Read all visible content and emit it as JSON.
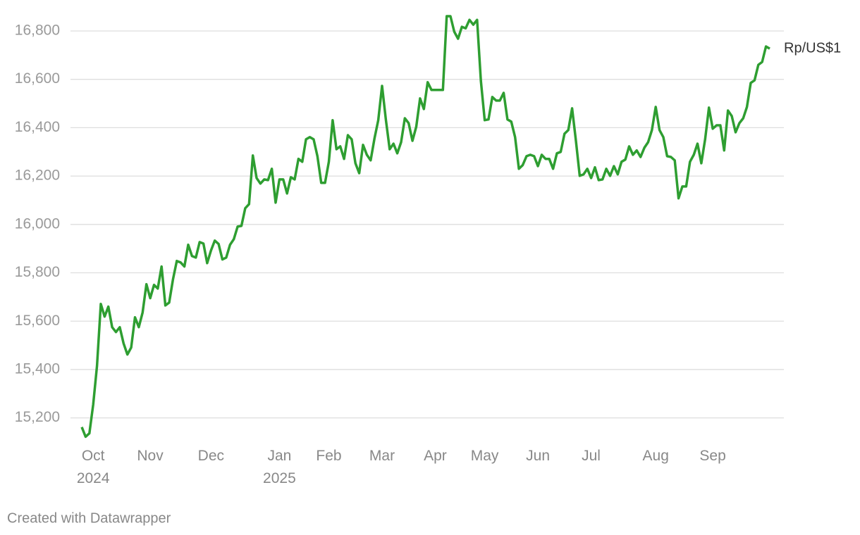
{
  "chart_data": {
    "type": "line",
    "credit": "Created with Datawrapper",
    "categories": [
      null,
      null,
      null,
      "Oct 2024",
      null,
      null,
      null,
      null,
      null,
      null,
      null,
      null,
      null,
      null,
      null,
      null,
      null,
      null,
      "Nov",
      null,
      null,
      null,
      null,
      null,
      null,
      null,
      null,
      null,
      null,
      null,
      null,
      null,
      null,
      null,
      "Dec",
      null,
      null,
      null,
      null,
      null,
      null,
      null,
      null,
      null,
      null,
      null,
      null,
      null,
      null,
      null,
      null,
      null,
      "Jan 2025",
      null,
      null,
      null,
      null,
      null,
      null,
      null,
      null,
      null,
      null,
      null,
      null,
      "Feb",
      null,
      null,
      null,
      null,
      null,
      null,
      null,
      null,
      null,
      null,
      null,
      null,
      null,
      "Mar",
      null,
      null,
      null,
      null,
      null,
      null,
      null,
      null,
      null,
      null,
      null,
      null,
      null,
      "Apr",
      null,
      null,
      null,
      null,
      null,
      null,
      null,
      null,
      null,
      null,
      null,
      null,
      "May",
      null,
      null,
      null,
      null,
      null,
      null,
      null,
      null,
      null,
      null,
      null,
      null,
      null,
      "Jun",
      null,
      null,
      null,
      null,
      null,
      null,
      null,
      null,
      null,
      null,
      null,
      null,
      null,
      "Jul",
      null,
      null,
      null,
      null,
      null,
      null,
      null,
      null,
      null,
      null,
      null,
      null,
      null,
      null,
      null,
      null,
      "Aug",
      null,
      null,
      null,
      null,
      null,
      null,
      null,
      null,
      null,
      null,
      null,
      null,
      null,
      null,
      "Sep",
      null,
      null,
      null,
      null,
      null,
      null,
      null,
      null,
      null,
      null,
      null,
      null,
      null,
      null,
      null
    ],
    "series": [
      {
        "name": "Rp/US$1",
        "color": "#2e9e31",
        "values": [
          15162,
          15122,
          15136,
          15255,
          15415,
          15671,
          15619,
          15660,
          15575,
          15555,
          15575,
          15508,
          15462,
          15491,
          15616,
          15575,
          15636,
          15753,
          15695,
          15750,
          15735,
          15826,
          15665,
          15677,
          15773,
          15849,
          15843,
          15826,
          15916,
          15869,
          15863,
          15927,
          15921,
          15840,
          15892,
          15933,
          15919,
          15855,
          15863,
          15916,
          15939,
          15991,
          15994,
          16067,
          16084,
          16285,
          16192,
          16169,
          16186,
          16183,
          16230,
          16090,
          16186,
          16186,
          16128,
          16195,
          16186,
          16271,
          16259,
          16352,
          16361,
          16352,
          16282,
          16172,
          16172,
          16259,
          16431,
          16311,
          16323,
          16271,
          16369,
          16352,
          16253,
          16212,
          16329,
          16288,
          16265,
          16355,
          16431,
          16573,
          16433,
          16311,
          16334,
          16294,
          16340,
          16439,
          16419,
          16346,
          16404,
          16521,
          16477,
          16588,
          16556,
          16556,
          16556,
          16556,
          16861,
          16861,
          16797,
          16768,
          16817,
          16811,
          16846,
          16826,
          16846,
          16593,
          16431,
          16434,
          16527,
          16512,
          16512,
          16544,
          16434,
          16425,
          16361,
          16230,
          16245,
          16282,
          16288,
          16282,
          16241,
          16288,
          16271,
          16271,
          16230,
          16294,
          16300,
          16375,
          16390,
          16480,
          16346,
          16201,
          16207,
          16230,
          16192,
          16236,
          16183,
          16186,
          16230,
          16201,
          16241,
          16207,
          16259,
          16268,
          16323,
          16288,
          16306,
          16279,
          16317,
          16340,
          16390,
          16486,
          16390,
          16361,
          16282,
          16279,
          16265,
          16108,
          16157,
          16157,
          16259,
          16288,
          16334,
          16253,
          16352,
          16483,
          16396,
          16410,
          16410,
          16306,
          16471,
          16448,
          16381,
          16419,
          16439,
          16486,
          16585,
          16596,
          16660,
          16672,
          16736,
          16727
        ]
      }
    ],
    "ylim": [
      15100,
      16880
    ],
    "yticks": [
      {
        "value": 15200,
        "label": "15,200"
      },
      {
        "value": 15400,
        "label": "15,400"
      },
      {
        "value": 15600,
        "label": "15,600"
      },
      {
        "value": 15800,
        "label": "15,800"
      },
      {
        "value": 16000,
        "label": "16,000"
      },
      {
        "value": 16200,
        "label": "16,200"
      },
      {
        "value": 16400,
        "label": "16,400"
      },
      {
        "value": 16600,
        "label": "16,600"
      },
      {
        "value": 16800,
        "label": "16,800"
      }
    ],
    "grid": true
  }
}
